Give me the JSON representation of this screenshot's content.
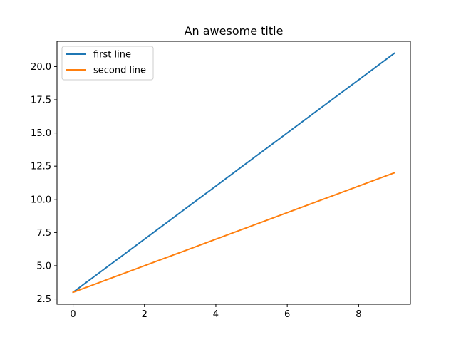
{
  "chart_data": {
    "type": "line",
    "title": "An awesome title",
    "xlabel": "",
    "ylabel": "",
    "x": [
      0,
      1,
      2,
      3,
      4,
      5,
      6,
      7,
      8,
      9
    ],
    "series": [
      {
        "name": "first line",
        "color": "#1f77b4",
        "values": [
          3,
          5,
          7,
          9,
          11,
          13,
          15,
          17,
          19,
          21
        ]
      },
      {
        "name": "second line",
        "color": "#ff7f0e",
        "values": [
          3,
          4,
          5,
          6,
          7,
          8,
          9,
          10,
          11,
          12
        ]
      }
    ],
    "xlim": [
      -0.45,
      9.45
    ],
    "ylim": [
      2.1,
      21.9
    ],
    "xticks": [
      0,
      2,
      4,
      6,
      8
    ],
    "xtick_labels": [
      "0",
      "2",
      "4",
      "6",
      "8"
    ],
    "yticks": [
      2.5,
      5.0,
      7.5,
      10.0,
      12.5,
      15.0,
      17.5,
      20.0
    ],
    "ytick_labels": [
      "2.5",
      "5.0",
      "7.5",
      "10.0",
      "12.5",
      "15.0",
      "17.5",
      "20.0"
    ],
    "grid": false,
    "legend_position": "top-left"
  }
}
